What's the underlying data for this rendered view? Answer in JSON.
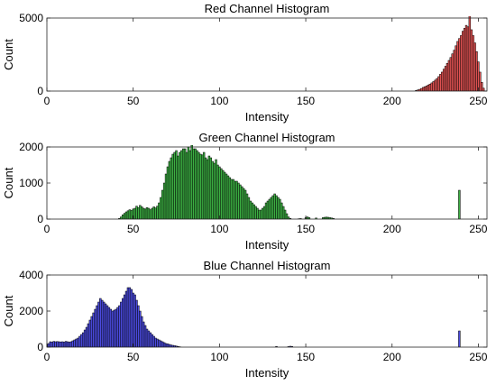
{
  "chart_data": [
    {
      "type": "bar",
      "title": "Red Channel Histogram",
      "xlabel": "Intensity",
      "ylabel": "Count",
      "xlim": [
        0,
        255
      ],
      "ylim": [
        0,
        5000
      ],
      "xticks": [
        0,
        50,
        100,
        150,
        200,
        250
      ],
      "yticks": [
        0,
        5000
      ],
      "grid": false,
      "bar_color": "#e05252",
      "edge_color": "#000000",
      "bins": [
        [
          214,
          50
        ],
        [
          215,
          80
        ],
        [
          216,
          120
        ],
        [
          217,
          180
        ],
        [
          218,
          250
        ],
        [
          219,
          300
        ],
        [
          220,
          350
        ],
        [
          221,
          420
        ],
        [
          222,
          480
        ],
        [
          223,
          560
        ],
        [
          224,
          650
        ],
        [
          225,
          750
        ],
        [
          226,
          860
        ],
        [
          227,
          990
        ],
        [
          228,
          1150
        ],
        [
          229,
          1300
        ],
        [
          230,
          1500
        ],
        [
          231,
          1700
        ],
        [
          232,
          1900
        ],
        [
          233,
          2100
        ],
        [
          234,
          2300
        ],
        [
          235,
          2550
        ],
        [
          236,
          2800
        ],
        [
          237,
          3100
        ],
        [
          238,
          3400
        ],
        [
          239,
          3600
        ],
        [
          240,
          3800
        ],
        [
          241,
          4100
        ],
        [
          242,
          4300
        ],
        [
          243,
          4500
        ],
        [
          244,
          4400
        ],
        [
          245,
          5300
        ],
        [
          246,
          4200
        ],
        [
          247,
          3800
        ],
        [
          248,
          3300
        ],
        [
          249,
          2700
        ],
        [
          250,
          2000
        ],
        [
          251,
          1300
        ],
        [
          252,
          600
        ],
        [
          253,
          200
        ]
      ]
    },
    {
      "type": "bar",
      "title": "Green Channel Histogram",
      "xlabel": "Intensity",
      "ylabel": "Count",
      "xlim": [
        0,
        255
      ],
      "ylim": [
        0,
        2000
      ],
      "xticks": [
        0,
        50,
        100,
        150,
        200,
        250
      ],
      "yticks": [
        0,
        1000,
        2000
      ],
      "grid": false,
      "bar_color": "#3cb043",
      "edge_color": "#000000",
      "bins": [
        [
          42,
          20
        ],
        [
          43,
          60
        ],
        [
          44,
          120
        ],
        [
          45,
          160
        ],
        [
          46,
          200
        ],
        [
          47,
          230
        ],
        [
          48,
          260
        ],
        [
          49,
          240
        ],
        [
          50,
          280
        ],
        [
          51,
          300
        ],
        [
          52,
          360
        ],
        [
          53,
          320
        ],
        [
          54,
          380
        ],
        [
          55,
          340
        ],
        [
          56,
          300
        ],
        [
          57,
          280
        ],
        [
          58,
          320
        ],
        [
          59,
          300
        ],
        [
          60,
          260
        ],
        [
          61,
          300
        ],
        [
          62,
          340
        ],
        [
          63,
          310
        ],
        [
          64,
          360
        ],
        [
          65,
          450
        ],
        [
          66,
          600
        ],
        [
          67,
          800
        ],
        [
          68,
          1000
        ],
        [
          69,
          1250
        ],
        [
          70,
          1450
        ],
        [
          71,
          1600
        ],
        [
          72,
          1700
        ],
        [
          73,
          1800
        ],
        [
          74,
          1850
        ],
        [
          75,
          1900
        ],
        [
          76,
          1750
        ],
        [
          77,
          1850
        ],
        [
          78,
          1900
        ],
        [
          79,
          1950
        ],
        [
          80,
          1950
        ],
        [
          81,
          1850
        ],
        [
          82,
          2000
        ],
        [
          83,
          1900
        ],
        [
          84,
          2050
        ],
        [
          85,
          1950
        ],
        [
          86,
          1950
        ],
        [
          87,
          1900
        ],
        [
          88,
          1850
        ],
        [
          89,
          1800
        ],
        [
          90,
          1780
        ],
        [
          91,
          1850
        ],
        [
          92,
          1700
        ],
        [
          93,
          1650
        ],
        [
          94,
          1750
        ],
        [
          95,
          1700
        ],
        [
          96,
          1600
        ],
        [
          97,
          1550
        ],
        [
          98,
          1650
        ],
        [
          99,
          1500
        ],
        [
          100,
          1450
        ],
        [
          101,
          1400
        ],
        [
          102,
          1350
        ],
        [
          103,
          1300
        ],
        [
          104,
          1250
        ],
        [
          105,
          1200
        ],
        [
          106,
          1150
        ],
        [
          107,
          1100
        ],
        [
          108,
          1100
        ],
        [
          109,
          1050
        ],
        [
          110,
          1050
        ],
        [
          111,
          1000
        ],
        [
          112,
          950
        ],
        [
          113,
          900
        ],
        [
          114,
          850
        ],
        [
          115,
          800
        ],
        [
          116,
          700
        ],
        [
          117,
          600
        ],
        [
          118,
          500
        ],
        [
          119,
          450
        ],
        [
          120,
          400
        ],
        [
          121,
          350
        ],
        [
          122,
          300
        ],
        [
          123,
          250
        ],
        [
          124,
          250
        ],
        [
          125,
          300
        ],
        [
          126,
          350
        ],
        [
          127,
          450
        ],
        [
          128,
          500
        ],
        [
          129,
          550
        ],
        [
          130,
          600
        ],
        [
          131,
          650
        ],
        [
          132,
          700
        ],
        [
          133,
          650
        ],
        [
          134,
          600
        ],
        [
          135,
          550
        ],
        [
          136,
          450
        ],
        [
          137,
          350
        ],
        [
          138,
          250
        ],
        [
          139,
          150
        ],
        [
          140,
          60
        ],
        [
          141,
          20
        ],
        [
          146,
          10
        ],
        [
          147,
          15
        ],
        [
          150,
          40
        ],
        [
          151,
          60
        ],
        [
          152,
          40
        ],
        [
          156,
          30
        ],
        [
          160,
          40
        ],
        [
          161,
          50
        ],
        [
          162,
          55
        ],
        [
          163,
          50
        ],
        [
          164,
          40
        ],
        [
          165,
          30
        ],
        [
          166,
          20
        ],
        [
          239,
          800
        ]
      ]
    },
    {
      "type": "bar",
      "title": "Blue Channel Histogram",
      "xlabel": "Intensity",
      "ylabel": "Count",
      "xlim": [
        0,
        255
      ],
      "ylim": [
        0,
        4000
      ],
      "xticks": [
        0,
        50,
        100,
        150,
        200,
        250
      ],
      "yticks": [
        0,
        2000,
        4000
      ],
      "grid": false,
      "bar_color": "#4b4be0",
      "edge_color": "#000000",
      "bins": [
        [
          0,
          150
        ],
        [
          1,
          200
        ],
        [
          2,
          300
        ],
        [
          3,
          280
        ],
        [
          4,
          320
        ],
        [
          5,
          300
        ],
        [
          6,
          310
        ],
        [
          7,
          300
        ],
        [
          8,
          290
        ],
        [
          9,
          300
        ],
        [
          10,
          280
        ],
        [
          11,
          320
        ],
        [
          12,
          300
        ],
        [
          13,
          280
        ],
        [
          14,
          300
        ],
        [
          15,
          350
        ],
        [
          16,
          400
        ],
        [
          17,
          450
        ],
        [
          18,
          500
        ],
        [
          19,
          600
        ],
        [
          20,
          700
        ],
        [
          21,
          800
        ],
        [
          22,
          950
        ],
        [
          23,
          1100
        ],
        [
          24,
          1300
        ],
        [
          25,
          1500
        ],
        [
          26,
          1700
        ],
        [
          27,
          1900
        ],
        [
          28,
          2100
        ],
        [
          29,
          2300
        ],
        [
          30,
          2500
        ],
        [
          31,
          2700
        ],
        [
          32,
          2600
        ],
        [
          33,
          2500
        ],
        [
          34,
          2400
        ],
        [
          35,
          2300
        ],
        [
          36,
          2200
        ],
        [
          37,
          2100
        ],
        [
          38,
          2000
        ],
        [
          39,
          2050
        ],
        [
          40,
          2100
        ],
        [
          41,
          2200
        ],
        [
          42,
          2300
        ],
        [
          43,
          2500
        ],
        [
          44,
          2700
        ],
        [
          45,
          2900
        ],
        [
          46,
          3100
        ],
        [
          47,
          3300
        ],
        [
          48,
          3300
        ],
        [
          49,
          3200
        ],
        [
          50,
          3000
        ],
        [
          51,
          2900
        ],
        [
          52,
          2600
        ],
        [
          53,
          2300
        ],
        [
          54,
          2000
        ],
        [
          55,
          1700
        ],
        [
          56,
          1400
        ],
        [
          57,
          1200
        ],
        [
          58,
          1000
        ],
        [
          59,
          900
        ],
        [
          60,
          800
        ],
        [
          61,
          700
        ],
        [
          62,
          600
        ],
        [
          63,
          500
        ],
        [
          64,
          450
        ],
        [
          65,
          400
        ],
        [
          66,
          350
        ],
        [
          67,
          300
        ],
        [
          68,
          250
        ],
        [
          69,
          200
        ],
        [
          70,
          180
        ],
        [
          71,
          150
        ],
        [
          72,
          120
        ],
        [
          73,
          100
        ],
        [
          74,
          80
        ],
        [
          75,
          60
        ],
        [
          76,
          40
        ],
        [
          77,
          20
        ],
        [
          133,
          40
        ],
        [
          140,
          30
        ],
        [
          141,
          50
        ],
        [
          142,
          40
        ],
        [
          239,
          900
        ]
      ]
    }
  ]
}
